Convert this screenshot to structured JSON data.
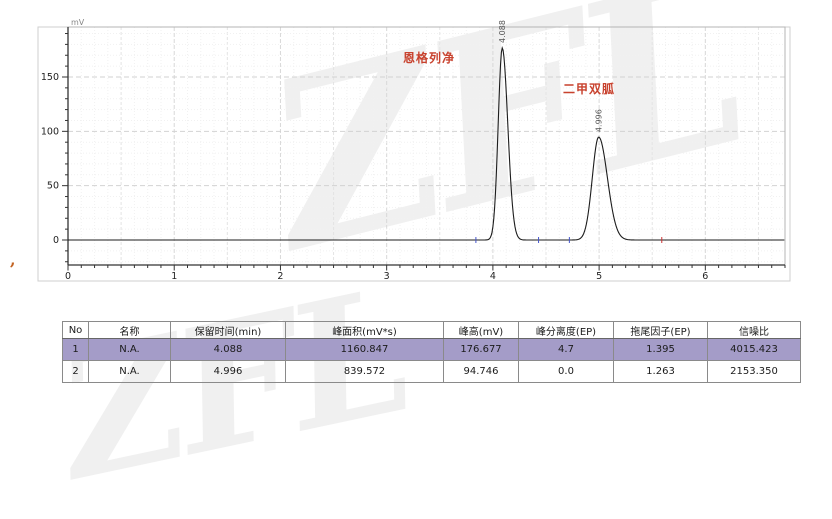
{
  "watermark": {
    "text": "ZFL"
  },
  "misc": {
    "corner_mark": ","
  },
  "chart_data": {
    "type": "line",
    "title": "",
    "xlabel": "",
    "ylabel": "",
    "y_unit_label": "mV",
    "x_ticks": [
      0,
      1,
      2,
      3,
      4,
      5,
      6
    ],
    "y_ticks": [
      0,
      50,
      100,
      150
    ],
    "xlim": [
      0,
      6.75
    ],
    "ylim": [
      -23,
      196
    ],
    "grid": "dashed",
    "legend": "none",
    "curve_color": "#1c1c1c",
    "annotation_color": "#c8422e",
    "peaks": [
      {
        "name": "恩格列净",
        "rt_label": "4.088",
        "retention_min": 4.088,
        "height_mV": 176.677,
        "area_mVs": 1160.847,
        "sigma_left": 0.038,
        "sigma_right": 0.052
      },
      {
        "name": "二甲双胍",
        "rt_label": "4.996",
        "retention_min": 4.996,
        "height_mV": 94.746,
        "area_mVs": 839.572,
        "sigma_left": 0.06,
        "sigma_right": 0.082
      }
    ],
    "baseline_marks": [
      {
        "t": 3.84,
        "color": "#4455cc"
      },
      {
        "t": 4.43,
        "color": "#4455cc"
      },
      {
        "t": 4.72,
        "color": "#4455cc"
      },
      {
        "t": 5.59,
        "color": "#cc3333"
      }
    ]
  },
  "table": {
    "columns": [
      "No",
      "名称",
      "保留时间(min)",
      "峰面积(mV*s)",
      "峰高(mV)",
      "峰分离度(EP)",
      "拖尾因子(EP)",
      "信噪比"
    ],
    "rows": [
      [
        "1",
        "N.A.",
        "4.088",
        "1160.847",
        "176.677",
        "4.7",
        "1.395",
        "4015.423"
      ],
      [
        "2",
        "N.A.",
        "4.996",
        "839.572",
        "94.746",
        "0.0",
        "1.263",
        "2153.350"
      ]
    ],
    "selected_row_index": 0,
    "selected_row_color": "#a49cc8"
  }
}
